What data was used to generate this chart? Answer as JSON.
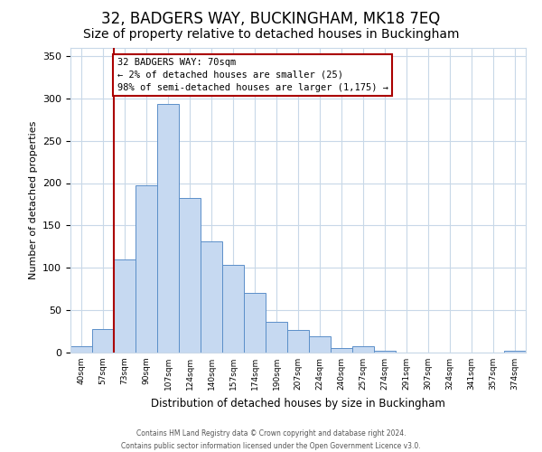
{
  "title": "32, BADGERS WAY, BUCKINGHAM, MK18 7EQ",
  "subtitle": "Size of property relative to detached houses in Buckingham",
  "xlabel": "Distribution of detached houses by size in Buckingham",
  "ylabel": "Number of detached properties",
  "bar_labels": [
    "40sqm",
    "57sqm",
    "73sqm",
    "90sqm",
    "107sqm",
    "124sqm",
    "140sqm",
    "157sqm",
    "174sqm",
    "190sqm",
    "207sqm",
    "224sqm",
    "240sqm",
    "257sqm",
    "274sqm",
    "291sqm",
    "307sqm",
    "324sqm",
    "341sqm",
    "357sqm",
    "374sqm"
  ],
  "bar_values": [
    7,
    28,
    110,
    197,
    293,
    182,
    131,
    103,
    70,
    36,
    27,
    19,
    5,
    8,
    2,
    0,
    0,
    0,
    0,
    0,
    2
  ],
  "bar_color": "#c6d9f1",
  "bar_edge_color": "#5b8fc9",
  "ylim": [
    0,
    360
  ],
  "yticks": [
    0,
    50,
    100,
    150,
    200,
    250,
    300,
    350
  ],
  "annotation_line1": "32 BADGERS WAY: 70sqm",
  "annotation_line2": "← 2% of detached houses are smaller (25)",
  "annotation_line3": "98% of semi-detached houses are larger (1,175) →",
  "footer1": "Contains HM Land Registry data © Crown copyright and database right 2024.",
  "footer2": "Contains public sector information licensed under the Open Government Licence v3.0.",
  "background_color": "#ffffff",
  "grid_color": "#c8d8e8",
  "title_fontsize": 12,
  "subtitle_fontsize": 10,
  "annotation_box_edge_color": "#aa0000",
  "property_line_color": "#aa0000",
  "property_line_x": 2
}
